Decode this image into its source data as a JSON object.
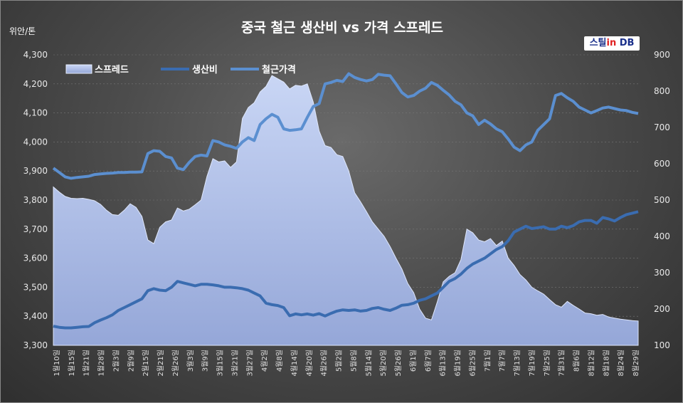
{
  "chart_data": {
    "type": "line",
    "title": "중국 철근 생산비 vs 가격 스프레드",
    "ylabel_left": "위안/톤",
    "watermark": {
      "prefix": "스틸",
      "highlight": "in",
      "suffix": " DB"
    },
    "ylim_left": [
      3300,
      4300
    ],
    "yticks_left": [
      "3,300",
      "3,400",
      "3,500",
      "3,600",
      "3,700",
      "3,800",
      "3,900",
      "4,000",
      "4,100",
      "4,200",
      "4,300"
    ],
    "ylim_right": [
      100,
      900
    ],
    "yticks_right": [
      "100",
      "200",
      "300",
      "400",
      "500",
      "600",
      "700",
      "800",
      "900"
    ],
    "legend_position": "top-left",
    "x_labels": [
      "1월10일",
      "1월15일",
      "1월21일",
      "1월28일",
      "2월3일",
      "2월9일",
      "2월15일",
      "2월21일",
      "2월26일",
      "3월3일",
      "3월9일",
      "3월15일",
      "3월21일",
      "3월27일",
      "4월2일",
      "4월8일",
      "4월14일",
      "4월20일",
      "4월26일",
      "5월2일",
      "5월8일",
      "5월14일",
      "5월20일",
      "5월26일",
      "6월1일",
      "6월7일",
      "6월13일",
      "6월19일",
      "6월25일",
      "7월1일",
      "7월7일",
      "7월13일",
      "7월19일",
      "7월25일",
      "7월31일",
      "8월6일",
      "8월12일",
      "8월18일",
      "8월24일",
      "8월29일"
    ],
    "series": [
      {
        "name": "스프레드",
        "axis": "right",
        "kind": "area",
        "color": "#b8c8ee",
        "values": [
          536,
          522,
          510,
          505,
          504,
          505,
          502,
          498,
          488,
          472,
          460,
          458,
          472,
          490,
          480,
          455,
          390,
          380,
          425,
          440,
          445,
          478,
          470,
          475,
          487,
          500,
          565,
          614,
          605,
          608,
          590,
          605,
          725,
          755,
          768,
          798,
          813,
          843,
          834,
          825,
          806,
          816,
          814,
          820,
          770,
          690,
          650,
          645,
          625,
          620,
          580,
          520,
          495,
          468,
          440,
          420,
          400,
          372,
          340,
          310,
          270,
          245,
          200,
          175,
          170,
          220,
          275,
          290,
          300,
          336,
          420,
          410,
          390,
          385,
          394,
          375,
          387,
          340,
          320,
          295,
          280,
          260,
          250,
          241,
          226,
          212,
          205,
          221,
          210,
          200,
          189,
          187,
          183,
          185,
          178,
          175,
          172,
          170,
          168,
          167
        ]
      },
      {
        "name": "생산비",
        "axis": "left",
        "kind": "line",
        "color": "#3a6cb0",
        "values": [
          3366,
          3362,
          3360,
          3360,
          3362,
          3364,
          3365,
          3378,
          3387,
          3395,
          3405,
          3420,
          3430,
          3440,
          3450,
          3460,
          3488,
          3495,
          3490,
          3488,
          3500,
          3520,
          3515,
          3510,
          3505,
          3510,
          3510,
          3508,
          3505,
          3500,
          3500,
          3498,
          3495,
          3490,
          3480,
          3470,
          3445,
          3440,
          3437,
          3430,
          3402,
          3408,
          3405,
          3408,
          3404,
          3409,
          3401,
          3410,
          3418,
          3422,
          3420,
          3422,
          3418,
          3420,
          3427,
          3430,
          3424,
          3420,
          3428,
          3438,
          3440,
          3445,
          3455,
          3460,
          3470,
          3480,
          3500,
          3520,
          3530,
          3545,
          3565,
          3580,
          3590,
          3600,
          3615,
          3630,
          3640,
          3660,
          3690,
          3700,
          3710,
          3702,
          3705,
          3708,
          3700,
          3700,
          3710,
          3705,
          3712,
          3725,
          3730,
          3730,
          3720,
          3740,
          3735,
          3728,
          3740,
          3750,
          3755,
          3760
        ]
      },
      {
        "name": "철근가격",
        "axis": "left",
        "kind": "line",
        "color": "#5b8fd0",
        "values": [
          3910,
          3895,
          3880,
          3875,
          3878,
          3880,
          3882,
          3888,
          3890,
          3892,
          3893,
          3895,
          3895,
          3896,
          3896,
          3897,
          3960,
          3970,
          3968,
          3950,
          3945,
          3910,
          3905,
          3930,
          3950,
          3955,
          3952,
          4005,
          4000,
          3990,
          3985,
          3978,
          4000,
          4015,
          4005,
          4060,
          4080,
          4095,
          4085,
          4045,
          4040,
          4042,
          4045,
          4085,
          4122,
          4132,
          4200,
          4205,
          4212,
          4208,
          4235,
          4222,
          4215,
          4210,
          4215,
          4233,
          4230,
          4228,
          4200,
          4170,
          4155,
          4160,
          4175,
          4185,
          4205,
          4195,
          4178,
          4162,
          4140,
          4128,
          4100,
          4090,
          4060,
          4075,
          4062,
          4045,
          4035,
          4010,
          3982,
          3970,
          3990,
          4000,
          4040,
          4060,
          4080,
          4160,
          4167,
          4152,
          4140,
          4120,
          4110,
          4100,
          4108,
          4117,
          4120,
          4115,
          4110,
          4108,
          4102,
          4098
        ]
      }
    ]
  }
}
